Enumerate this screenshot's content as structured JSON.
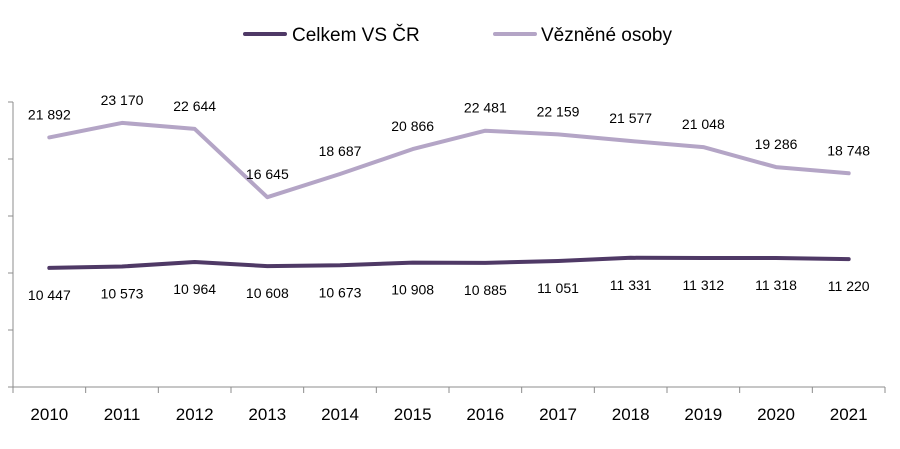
{
  "chart_data": {
    "type": "line",
    "categories": [
      "2010",
      "2011",
      "2012",
      "2013",
      "2014",
      "2015",
      "2016",
      "2017",
      "2018",
      "2019",
      "2020",
      "2021"
    ],
    "series": [
      {
        "name": "Celkem VS ČR",
        "color": "#4f3966",
        "values": [
          10447,
          10573,
          10964,
          10608,
          10673,
          10908,
          10885,
          11051,
          11331,
          11312,
          11318,
          11220
        ],
        "labels": [
          "10 447",
          "10 573",
          "10 964",
          "10 608",
          "10 673",
          "10 908",
          "10 885",
          "11 051",
          "11 331",
          "11 312",
          "11 318",
          "11 220"
        ]
      },
      {
        "name": "Vězněné osoby",
        "color": "#b4a5c6",
        "values": [
          21892,
          23170,
          22644,
          16645,
          18687,
          20866,
          22481,
          22159,
          21577,
          21048,
          19286,
          18748
        ],
        "labels": [
          "21 892",
          "23 170",
          "22 644",
          "16 645",
          "18 687",
          "20 866",
          "22 481",
          "22 159",
          "21 577",
          "21 048",
          "19 286",
          "18 748"
        ]
      }
    ],
    "title": "",
    "xlabel": "",
    "ylabel": "",
    "ylim": [
      0,
      25000
    ],
    "grid": false,
    "legend": "top-center"
  }
}
